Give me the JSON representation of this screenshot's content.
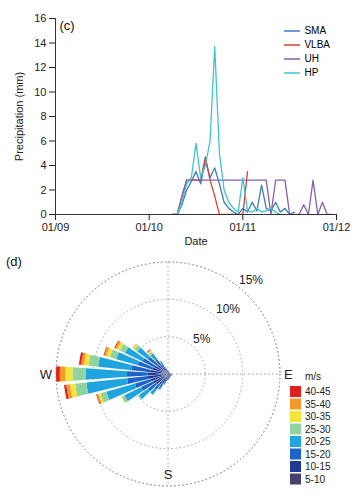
{
  "chart_data": [
    {
      "type": "line",
      "title": "(c)",
      "x_label": "Date",
      "y_label": "Precipitation (mm)",
      "x": [
        10.25,
        10.3,
        10.35,
        10.4,
        10.45,
        10.5,
        10.55,
        10.6,
        10.65,
        10.7,
        10.75,
        10.8,
        10.85,
        10.9,
        10.95,
        11.0,
        11.05,
        11.1,
        11.15,
        11.2,
        11.25,
        11.3,
        11.35,
        11.4,
        11.45,
        11.5,
        11.55,
        11.6,
        11.65,
        11.7,
        11.75,
        11.8,
        11.85,
        11.9,
        11.95
      ],
      "series": [
        {
          "name": "SMA",
          "color": "#3b7cc0",
          "values": [
            0,
            0,
            0.8,
            2,
            2.7,
            3.5,
            2.5,
            4.5,
            3,
            3.8,
            2.5,
            1,
            0.5,
            0.2,
            0,
            0.5,
            0.2,
            1,
            0.3,
            2.4,
            0.5,
            0.3,
            1,
            0.2,
            0.5,
            0,
            0.2,
            null,
            null,
            null,
            null,
            null,
            null,
            null,
            null
          ]
        },
        {
          "name": "VLBA",
          "color": "#d94535",
          "values": [
            0,
            0,
            1.5,
            2.8,
            2.8,
            2.8,
            2.8,
            4.7,
            2.8,
            1.5,
            0,
            0,
            0,
            0,
            0,
            0,
            3.5,
            null,
            null,
            null,
            null,
            null,
            null,
            null,
            null,
            null,
            null,
            null,
            null,
            null,
            null,
            null,
            null,
            null,
            null
          ]
        },
        {
          "name": "UH",
          "color": "#8a5ea8",
          "values": [
            0,
            0,
            1.5,
            2.8,
            2.8,
            2.8,
            2.8,
            2.8,
            2.8,
            2.8,
            2.8,
            2.8,
            2.8,
            2.8,
            2.8,
            2.8,
            2.8,
            2.8,
            2.8,
            2.8,
            2.8,
            0,
            2.8,
            2.8,
            2.8,
            0,
            0,
            0,
            0.8,
            0,
            2.8,
            0,
            1,
            0,
            0
          ]
        },
        {
          "name": "HP",
          "color": "#3ec4d4",
          "values": [
            0,
            0,
            1,
            2.5,
            3,
            5.8,
            3,
            4,
            6,
            13.7,
            5,
            2,
            1,
            0.5,
            0.2,
            3,
            0.3,
            0.2,
            0.5,
            0.2,
            0.3,
            0.5,
            0.2,
            0,
            null,
            null,
            null,
            null,
            null,
            null,
            null,
            null,
            null,
            null,
            null
          ]
        }
      ],
      "xlim": [
        9,
        12
      ],
      "xticks": [
        {
          "value": 9,
          "label": "01/09"
        },
        {
          "value": 10,
          "label": "01/10"
        },
        {
          "value": 11,
          "label": "01/11"
        },
        {
          "value": 12,
          "label": "01/12"
        }
      ],
      "ylim": [
        0,
        16
      ],
      "yticks": [
        0,
        2,
        4,
        6,
        8,
        10,
        12,
        14,
        16
      ],
      "grid": false,
      "legend": "top-right"
    },
    {
      "type": "wind_rose",
      "title": "(d)",
      "legend_title": "m/s",
      "directions": [
        0,
        10,
        20,
        30,
        40,
        50,
        60,
        70,
        80,
        90,
        100,
        110,
        120,
        130,
        140,
        150,
        160,
        170,
        180,
        190,
        200,
        210,
        220,
        230,
        240,
        250,
        260,
        270,
        280,
        290,
        300,
        310,
        320,
        330,
        340,
        350
      ],
      "series": [
        {
          "name": "5-10",
          "color": "#45426e",
          "values": [
            0.3,
            0.3,
            0.2,
            0.2,
            0.2,
            0.2,
            0.2,
            0.2,
            0.3,
            0.3,
            0.3,
            0.3,
            0.3,
            0.3,
            0.3,
            0.3,
            0.3,
            0.3,
            0.3,
            0.3,
            0.4,
            0.4,
            0.5,
            0.5,
            0.6,
            0.6,
            0.7,
            0.7,
            0.6,
            0.6,
            0.5,
            0.5,
            0.4,
            0.4,
            0.3,
            0.3
          ]
        },
        {
          "name": "10-15",
          "color": "#1f3a93",
          "values": [
            0.1,
            0.1,
            0.1,
            0.1,
            0.1,
            0.1,
            0.1,
            0.1,
            0.1,
            0.2,
            0.2,
            0.3,
            0.2,
            0.2,
            0.2,
            0.2,
            0.3,
            0.3,
            0.4,
            0.5,
            0.7,
            1.0,
            1.2,
            1.5,
            1.6,
            1.8,
            2.0,
            2.0,
            1.8,
            1.6,
            1.5,
            1.3,
            1.0,
            0.6,
            0.4,
            0.2
          ]
        },
        {
          "name": "15-20",
          "color": "#1e64c8",
          "values": [
            0,
            0,
            0,
            0,
            0,
            0,
            0,
            0,
            0,
            0,
            0,
            0,
            0,
            0,
            0,
            0,
            0,
            0.1,
            0.1,
            0.2,
            0.3,
            0.6,
            0.9,
            1.3,
            1.8,
            2.2,
            2.8,
            2.8,
            2.5,
            2.0,
            1.8,
            1.5,
            1.0,
            0.5,
            0.2,
            0.1
          ]
        },
        {
          "name": "20-25",
          "color": "#1fa4e0",
          "values": [
            0,
            0,
            0,
            0,
            0,
            0,
            0,
            0,
            0,
            0,
            0,
            0,
            0,
            0,
            0,
            0,
            0,
            0,
            0,
            0,
            0.1,
            0.4,
            0.8,
            1.5,
            2.5,
            4.0,
            5.5,
            5.5,
            4.5,
            3.0,
            2.6,
            1.8,
            1.0,
            0.4,
            0.1,
            0
          ]
        },
        {
          "name": "25-30",
          "color": "#8fd3a0",
          "values": [
            0,
            0,
            0,
            0,
            0,
            0,
            0,
            0,
            0,
            0,
            0,
            0,
            0,
            0,
            0,
            0,
            0,
            0,
            0,
            0,
            0,
            0,
            0.1,
            0.2,
            0.4,
            0.8,
            1.5,
            1.8,
            1.3,
            0.9,
            0.8,
            0.5,
            0.3,
            0.1,
            0,
            0
          ]
        },
        {
          "name": "30-35",
          "color": "#f5e43a",
          "values": [
            0,
            0,
            0,
            0,
            0,
            0,
            0,
            0,
            0,
            0,
            0,
            0,
            0,
            0,
            0,
            0,
            0,
            0,
            0,
            0,
            0,
            0,
            0,
            0,
            0.1,
            0.3,
            0.7,
            1.0,
            0.6,
            0.5,
            0.4,
            0.2,
            0.2,
            0,
            0,
            0
          ]
        },
        {
          "name": "35-40",
          "color": "#f59a2a",
          "values": [
            0,
            0,
            0,
            0,
            0,
            0,
            0,
            0,
            0,
            0,
            0,
            0,
            0,
            0,
            0,
            0,
            0,
            0,
            0,
            0,
            0,
            0,
            0,
            0,
            0,
            0.2,
            0.5,
            0.7,
            0.4,
            0.3,
            0.3,
            0.1,
            0.1,
            0,
            0,
            0
          ]
        },
        {
          "name": "40-45",
          "color": "#e0221e",
          "values": [
            0,
            0,
            0,
            0,
            0,
            0,
            0,
            0,
            0,
            0,
            0,
            0,
            0,
            0,
            0,
            0,
            0,
            0,
            0,
            0,
            0,
            0,
            0,
            0,
            0,
            0.1,
            0.3,
            0.5,
            0.3,
            0.1,
            0.1,
            0,
            0.1,
            0,
            0,
            0
          ]
        }
      ],
      "rlim": [
        0,
        15
      ],
      "rticks": [
        {
          "value": 5,
          "label": "5%"
        },
        {
          "value": 10,
          "label": "10%"
        },
        {
          "value": 15,
          "label": "15%"
        }
      ],
      "direction_labels": [
        {
          "value": 270,
          "label": "W"
        },
        {
          "value": 90,
          "label": "E"
        },
        {
          "value": 180,
          "label": "S"
        }
      ],
      "grid": true,
      "legend": "bottom-right"
    }
  ]
}
